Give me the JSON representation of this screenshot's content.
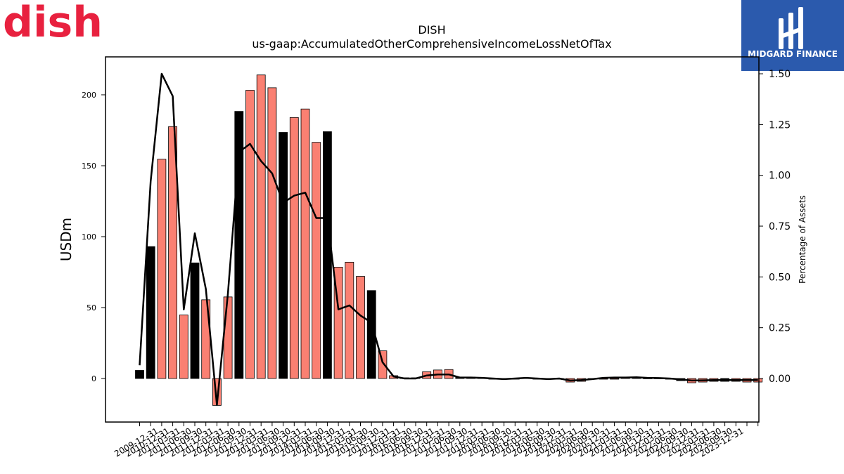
{
  "brand": {
    "left_logo_text": "dish",
    "left_logo_color": "#e8213f",
    "right_logo_text": "MIDGARD FINANCE",
    "right_logo_bg": "#2b5aad"
  },
  "chart_data": {
    "type": "bar",
    "title": "DISH",
    "subtitle": "us-gaap:AccumulatedOtherComprehensiveIncomeLossNetOfTax",
    "ylabel": "USDm",
    "y2label": "Percentage of Assets",
    "ylim": [
      -30,
      225
    ],
    "y2lim": [
      -0.2,
      1.5
    ],
    "yticks": [
      0,
      50,
      100,
      150,
      200
    ],
    "y2ticks": [
      "0.00",
      "0.25",
      "0.50",
      "0.75",
      "1.00",
      "1.25",
      "1.50"
    ],
    "categories": [
      "2009-12-31",
      "2010-03-31",
      "2010-06-30",
      "2010-09-30",
      "2010-12-31",
      "2011-03-31",
      "2011-06-30",
      "2011-09-30",
      "2011-12-31",
      "2012-03-31",
      "2012-06-30",
      "2012-09-30",
      "2012-12-31",
      "2013-03-31",
      "2013-06-30",
      "2013-09-30",
      "2013-12-31",
      "2014-03-31",
      "2014-06-30",
      "2014-09-30",
      "2014-12-31",
      "2015-03-31",
      "2015-06-30",
      "2015-09-30",
      "2015-12-31",
      "2016-03-31",
      "2016-06-30",
      "2016-09-30",
      "2016-12-31",
      "2017-03-31",
      "2017-06-30",
      "2017-09-30",
      "2017-12-31",
      "2018-03-31",
      "2018-06-30",
      "2018-09-30",
      "2018-12-31",
      "2019-03-31",
      "2019-06-30",
      "2019-09-30",
      "2019-12-31",
      "2020-03-31",
      "2020-06-30",
      "2020-09-30",
      "2020-12-31",
      "2021-03-31",
      "2021-06-30",
      "2021-09-30",
      "2021-12-31",
      "2022-03-31",
      "2022-06-30",
      "2022-09-30",
      "2022-12-31",
      "2023-03-31",
      "2023-06-30",
      "2023-09-30",
      "2023-12-31"
    ],
    "xtick_labels_shown": [
      "2009-12-31",
      "2010-12-31",
      "2011-03-31",
      "2011-06-30",
      "2011-09-30",
      "2011-12-31",
      "2012-03-31",
      "2012-06-30",
      "2012-09-30",
      "2012-12-31",
      "2013-03-31",
      "2013-06-30",
      "2013-09-30",
      "2013-12-31",
      "2014-03-31",
      "2014-06-30",
      "2014-09-30",
      "2014-12-31",
      "2015-03-31",
      "2015-06-30",
      "2015-09-30",
      "2015-12-31",
      "2016-03-31",
      "2016-06-30",
      "2016-09-30",
      "2016-12-31",
      "2017-03-31",
      "2017-06-30",
      "2017-09-30",
      "2017-12-31",
      "2018-03-31",
      "2018-06-30",
      "2018-09-30",
      "2018-12-31",
      "2019-03-31",
      "2019-06-30",
      "2019-09-30",
      "2019-12-31",
      "2020-03-31",
      "2020-06-30",
      "2020-09-30",
      "2020-12-31",
      "2021-03-31",
      "2021-06-30",
      "2021-09-30",
      "2021-12-31",
      "2022-03-31",
      "2022-06-30",
      "2022-09-30",
      "2022-12-31",
      "2023-03-31",
      "2023-06-30",
      "2023-09-30",
      "2023-12-31"
    ],
    "series": [
      {
        "values": [
          5.7,
          93,
          154.6,
          177.6,
          44.8,
          81.5,
          55.5,
          -19,
          57.5,
          188.3,
          203.2,
          214,
          205,
          173.5,
          184,
          190,
          166.5,
          174,
          78.5,
          82,
          72,
          62,
          19.5,
          2,
          0.5,
          0.5,
          4.8,
          6,
          6.3,
          0.8,
          1,
          0.5,
          0,
          -0.5,
          0,
          0.5,
          0,
          -0.5,
          0,
          -2.5,
          -2,
          -0.5,
          -0.3,
          0,
          0.6,
          1,
          0.3,
          0.3,
          0,
          -1.5,
          -3,
          -2.5,
          -2,
          -2,
          -2,
          -2.5,
          -2.5
        ],
        "highlight_indices": [
          0,
          1,
          5,
          9,
          13,
          17,
          21,
          25,
          29,
          33,
          37,
          41,
          45,
          49,
          53
        ],
        "bar_color": "#fa8072",
        "highlight_color": "#000000"
      },
      {
        "axis": "secondary",
        "values": [
          0.065,
          0.97,
          1.5,
          1.39,
          0.34,
          0.715,
          0.44,
          -0.13,
          0.42,
          1.115,
          1.155,
          1.07,
          1.01,
          0.865,
          0.9,
          0.915,
          0.79,
          0.79,
          0.34,
          0.36,
          0.31,
          0.275,
          0.08,
          0.01,
          0,
          0,
          0.015,
          0.02,
          0.02,
          0.005,
          0.005,
          0.003,
          0,
          -0.003,
          0,
          0.003,
          0,
          -0.003,
          0,
          -0.01,
          -0.008,
          -0.003,
          0.003,
          0.005,
          0.005,
          0.006,
          0.003,
          0.002,
          0,
          -0.004,
          -0.01,
          -0.009,
          -0.008,
          -0.008,
          -0.008,
          -0.008,
          -0.008
        ],
        "line_color": "#000000"
      }
    ]
  }
}
